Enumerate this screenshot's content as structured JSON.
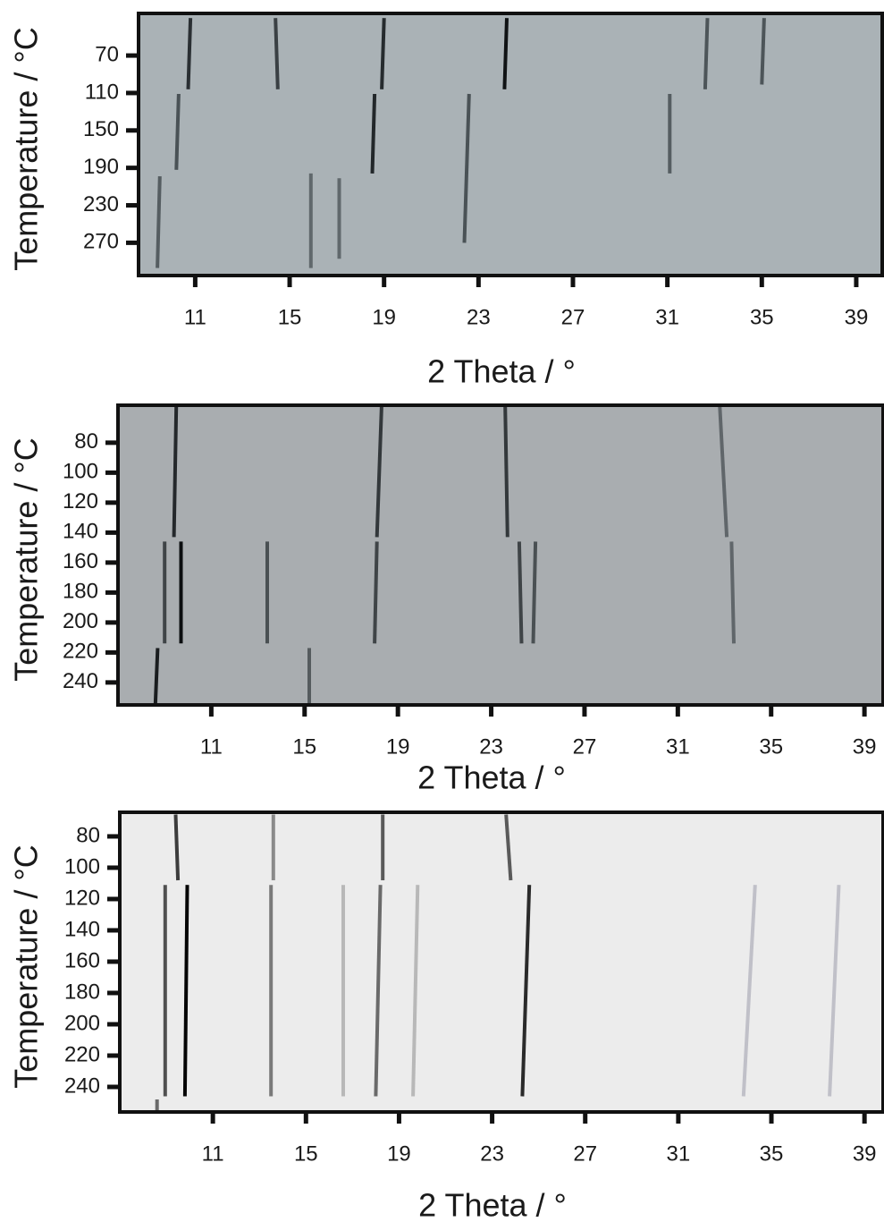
{
  "chart_data": [
    {
      "type": "lines",
      "xlabel": "2 Theta / °",
      "ylabel": "Temperature / °C",
      "background": "#aab2b6",
      "xlim": [
        8.6,
        40.1
      ],
      "xticks": [
        11,
        15,
        19,
        23,
        27,
        31,
        35,
        39
      ],
      "ylim": [
        305,
        25
      ],
      "yticks": [
        70,
        110,
        150,
        190,
        230,
        270
      ],
      "series": [
        {
          "color": "#2a2f33",
          "x": [
            10.8,
            10.7
          ],
          "values": [
            30,
            106
          ]
        },
        {
          "color": "#3a4044",
          "x": [
            14.4,
            14.5
          ],
          "values": [
            30,
            106
          ]
        },
        {
          "color": "#262b2e",
          "x": [
            19.0,
            18.9
          ],
          "values": [
            30,
            106
          ]
        },
        {
          "color": "#101315",
          "x": [
            24.2,
            24.1
          ],
          "values": [
            30,
            106
          ]
        },
        {
          "color": "#4d5559",
          "x": [
            32.7,
            32.6
          ],
          "values": [
            30,
            106
          ]
        },
        {
          "color": "#4d5559",
          "x": [
            35.1,
            35.0
          ],
          "values": [
            30,
            101
          ]
        },
        {
          "color": "#4a5256",
          "x": [
            10.3,
            10.2
          ],
          "values": [
            111,
            192
          ]
        },
        {
          "color": "#22272a",
          "x": [
            18.6,
            18.5
          ],
          "values": [
            111,
            196
          ]
        },
        {
          "color": "#4a5256",
          "x": [
            22.6,
            22.4
          ],
          "values": [
            111,
            270
          ]
        },
        {
          "color": "#555d61",
          "x": [
            31.1,
            31.1
          ],
          "values": [
            111,
            196
          ]
        },
        {
          "color": "#555d61",
          "x": [
            9.5,
            9.4
          ],
          "values": [
            199,
            297
          ]
        },
        {
          "color": "#60686c",
          "x": [
            15.9,
            15.9
          ],
          "values": [
            196,
            297
          ]
        },
        {
          "color": "#60686c",
          "x": [
            17.1,
            17.1
          ],
          "values": [
            201,
            287
          ]
        }
      ]
    },
    {
      "type": "lines",
      "xlabel": "2 Theta / °",
      "ylabel": "Temperature / °C",
      "background": "#a9adb0",
      "xlim": [
        7.0,
        39.8
      ],
      "xticks": [
        11,
        15,
        19,
        23,
        27,
        31,
        35,
        39
      ],
      "ylim": [
        255,
        55
      ],
      "yticks": [
        80,
        100,
        120,
        140,
        160,
        180,
        200,
        220,
        240
      ],
      "series": [
        {
          "color": "#24282b",
          "x": [
            9.5,
            9.4
          ],
          "values": [
            56,
            143
          ]
        },
        {
          "color": "#33383b",
          "x": [
            18.3,
            18.1
          ],
          "values": [
            56,
            143
          ]
        },
        {
          "color": "#33383b",
          "x": [
            23.6,
            23.7
          ],
          "values": [
            56,
            143
          ]
        },
        {
          "color": "#60666a",
          "x": [
            32.8,
            33.1
          ],
          "values": [
            56,
            143
          ]
        },
        {
          "color": "#0c0e10",
          "x": [
            9.7,
            9.7
          ],
          "values": [
            146,
            214
          ]
        },
        {
          "color": "#3f4447",
          "x": [
            9.0,
            9.0
          ],
          "values": [
            146,
            214
          ]
        },
        {
          "color": "#4a5053",
          "x": [
            13.4,
            13.4
          ],
          "values": [
            146,
            214
          ]
        },
        {
          "color": "#3f4447",
          "x": [
            18.1,
            18.0
          ],
          "values": [
            146,
            214
          ]
        },
        {
          "color": "#3f4447",
          "x": [
            24.2,
            24.3
          ],
          "values": [
            146,
            214
          ]
        },
        {
          "color": "#4a5053",
          "x": [
            24.9,
            24.8
          ],
          "values": [
            146,
            214
          ]
        },
        {
          "color": "#60666a",
          "x": [
            33.3,
            33.4
          ],
          "values": [
            146,
            214
          ]
        },
        {
          "color": "#1a1d1f",
          "x": [
            8.7,
            8.6
          ],
          "values": [
            217,
            255
          ]
        },
        {
          "color": "#555b5e",
          "x": [
            15.2,
            15.2
          ],
          "values": [
            217,
            255
          ]
        }
      ]
    },
    {
      "type": "lines",
      "xlabel": "2 Theta / °",
      "ylabel": "Temperature / °C",
      "background": "#ececec",
      "xlim": [
        7.0,
        39.8
      ],
      "xticks": [
        11,
        15,
        19,
        23,
        27,
        31,
        35,
        39
      ],
      "ylim": [
        256,
        64.6
      ],
      "yticks": [
        80,
        100,
        120,
        140,
        160,
        180,
        200,
        220,
        240
      ],
      "series": [
        {
          "color": "#3c3c3c",
          "x": [
            9.4,
            9.5
          ],
          "values": [
            66,
            108
          ]
        },
        {
          "color": "#8a8a8a",
          "x": [
            13.6,
            13.6
          ],
          "values": [
            66,
            108
          ]
        },
        {
          "color": "#5a5a5a",
          "x": [
            18.3,
            18.3
          ],
          "values": [
            66,
            108
          ]
        },
        {
          "color": "#5a5a5a",
          "x": [
            23.6,
            23.8
          ],
          "values": [
            66,
            108
          ]
        },
        {
          "color": "#050505",
          "x": [
            9.9,
            9.8
          ],
          "values": [
            111,
            246
          ]
        },
        {
          "color": "#505050",
          "x": [
            8.95,
            8.95
          ],
          "values": [
            111,
            246
          ]
        },
        {
          "color": "#7a7a7a",
          "x": [
            13.5,
            13.5
          ],
          "values": [
            111,
            246
          ]
        },
        {
          "color": "#6a6a6a",
          "x": [
            18.2,
            18.0
          ],
          "values": [
            111,
            246
          ]
        },
        {
          "color": "#2a2a2a",
          "x": [
            24.6,
            24.3
          ],
          "values": [
            111,
            246
          ]
        },
        {
          "color": "#b8b8b8",
          "x": [
            19.8,
            19.6
          ],
          "values": [
            111,
            246
          ]
        },
        {
          "color": "#b8b8b8",
          "x": [
            16.6,
            16.6
          ],
          "values": [
            111,
            246
          ]
        },
        {
          "color": "#c0c0c8",
          "x": [
            34.3,
            33.8
          ],
          "values": [
            111,
            246
          ]
        },
        {
          "color": "#c0c0c8",
          "x": [
            37.9,
            37.5
          ],
          "values": [
            111,
            246
          ]
        },
        {
          "color": "#6a6a6a",
          "x": [
            8.6,
            8.6
          ],
          "values": [
            248,
            256
          ]
        }
      ]
    }
  ]
}
